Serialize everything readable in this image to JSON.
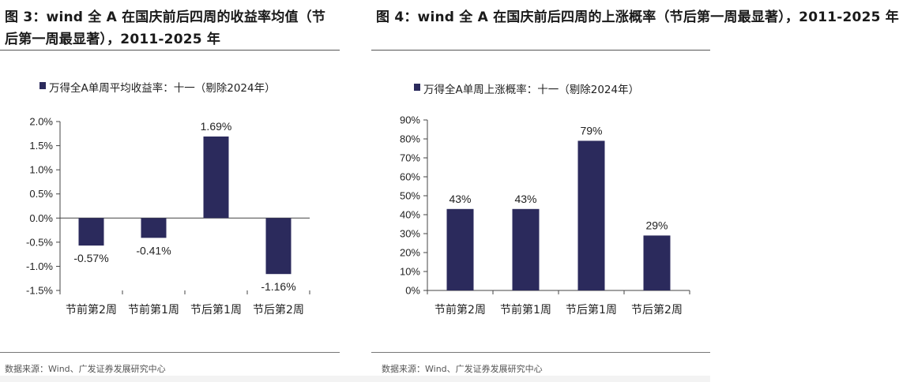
{
  "figures": [
    {
      "title": "图 3：wind 全 A 在国庆前后四周的收益率均值（节后第一周最显著），2011-2025 年",
      "source": "数据来源：Wind、广发证券发展研究中心"
    },
    {
      "title": "图 4：wind 全 A 在国庆前后四周的上涨概率（节后第一周最显著），2011-2025 年",
      "source": "数据来源：Wind、广发证券发展研究中心"
    }
  ],
  "colors": {
    "bar": "#2b2a5c",
    "axis": "#444444",
    "rule": "#555555"
  },
  "chart_data": [
    {
      "type": "bar",
      "legend": "万得全A单周平均收益率：十一（剔除2024年）",
      "categories": [
        "节前第2周",
        "节前第1周",
        "节后第1周",
        "节后第2周"
      ],
      "values": [
        -0.57,
        -0.41,
        1.69,
        -1.16
      ],
      "value_labels": [
        "-0.57%",
        "-0.41%",
        "1.69%",
        "-1.16%"
      ],
      "ylim": [
        -1.5,
        2.0
      ],
      "yticks": [
        2.0,
        1.5,
        1.0,
        0.5,
        0.0,
        -0.5,
        -1.0,
        -1.5
      ],
      "ytick_labels": [
        "2.0%",
        "1.5%",
        "1.0%",
        "0.5%",
        "0.0%",
        "-0.5%",
        "-1.0%",
        "-1.5%"
      ],
      "grid": false
    },
    {
      "type": "bar",
      "legend": "万得全A单周上涨概率：十一（剔除2024年）",
      "categories": [
        "节前第2周",
        "节前第1周",
        "节后第1周",
        "节后第2周"
      ],
      "values": [
        43,
        43,
        79,
        29
      ],
      "value_labels": [
        "43%",
        "43%",
        "79%",
        "29%"
      ],
      "ylim": [
        0,
        90
      ],
      "yticks": [
        90,
        80,
        70,
        60,
        50,
        40,
        30,
        20,
        10,
        0
      ],
      "ytick_labels": [
        "90%",
        "80%",
        "70%",
        "60%",
        "50%",
        "40%",
        "30%",
        "20%",
        "10%",
        "0%"
      ],
      "grid": false
    }
  ]
}
